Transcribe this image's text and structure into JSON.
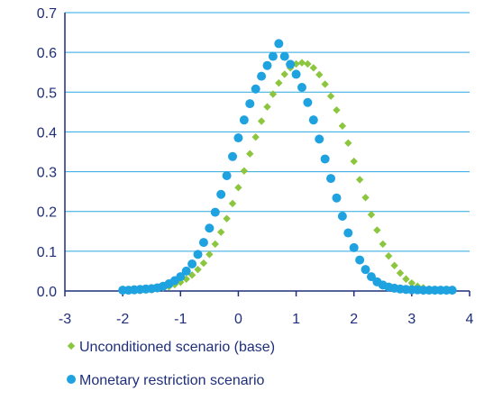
{
  "chart_data": {
    "type": "scatter",
    "title": "",
    "xlabel": "",
    "ylabel": "",
    "xlim": [
      -3,
      4
    ],
    "ylim": [
      0,
      0.7
    ],
    "x_ticks": [
      "-3",
      "-2",
      "-1",
      "0",
      "1",
      "2",
      "3",
      "4"
    ],
    "y_ticks": [
      "0.0",
      "0.1",
      "0.2",
      "0.3",
      "0.4",
      "0.5",
      "0.6",
      "0.7"
    ],
    "grid": {
      "horizontal": true,
      "vertical": false
    },
    "legend_position": "bottom-left",
    "series": [
      {
        "name": "Unconditioned scenario (base)",
        "marker": "diamond",
        "color": "#8cc63f",
        "points": [
          [
            -2.0,
            0.0
          ],
          [
            -1.9,
            0.0
          ],
          [
            -1.8,
            0.001
          ],
          [
            -1.7,
            0.001
          ],
          [
            -1.6,
            0.002
          ],
          [
            -1.5,
            0.003
          ],
          [
            -1.4,
            0.005
          ],
          [
            -1.3,
            0.008
          ],
          [
            -1.2,
            0.011
          ],
          [
            -1.1,
            0.016
          ],
          [
            -1.0,
            0.022
          ],
          [
            -0.9,
            0.03
          ],
          [
            -0.8,
            0.04
          ],
          [
            -0.7,
            0.054
          ],
          [
            -0.6,
            0.07
          ],
          [
            -0.5,
            0.092
          ],
          [
            -0.4,
            0.118
          ],
          [
            -0.3,
            0.148
          ],
          [
            -0.2,
            0.182
          ],
          [
            -0.1,
            0.22
          ],
          [
            0.0,
            0.26
          ],
          [
            0.1,
            0.302
          ],
          [
            0.2,
            0.345
          ],
          [
            0.3,
            0.387
          ],
          [
            0.4,
            0.427
          ],
          [
            0.5,
            0.463
          ],
          [
            0.6,
            0.495
          ],
          [
            0.7,
            0.523
          ],
          [
            0.8,
            0.545
          ],
          [
            0.9,
            0.561
          ],
          [
            1.0,
            0.571
          ],
          [
            1.1,
            0.574
          ],
          [
            1.2,
            0.571
          ],
          [
            1.3,
            0.561
          ],
          [
            1.4,
            0.544
          ],
          [
            1.5,
            0.52
          ],
          [
            1.6,
            0.49
          ],
          [
            1.7,
            0.455
          ],
          [
            1.8,
            0.415
          ],
          [
            1.9,
            0.372
          ],
          [
            2.0,
            0.326
          ],
          [
            2.1,
            0.28
          ],
          [
            2.2,
            0.235
          ],
          [
            2.3,
            0.192
          ],
          [
            2.4,
            0.153
          ],
          [
            2.5,
            0.118
          ],
          [
            2.6,
            0.088
          ],
          [
            2.7,
            0.064
          ],
          [
            2.8,
            0.045
          ],
          [
            2.9,
            0.03
          ],
          [
            3.0,
            0.02
          ],
          [
            3.1,
            0.012
          ],
          [
            3.2,
            0.008
          ],
          [
            3.3,
            0.005
          ],
          [
            3.4,
            0.003
          ],
          [
            3.5,
            0.002
          ],
          [
            3.6,
            0.001
          ],
          [
            3.7,
            0.001
          ]
        ]
      },
      {
        "name": "Monetary restriction scenario",
        "marker": "circle",
        "color": "#1fa2e0",
        "points": [
          [
            -2.0,
            0.002
          ],
          [
            -1.9,
            0.002
          ],
          [
            -1.8,
            0.003
          ],
          [
            -1.7,
            0.004
          ],
          [
            -1.6,
            0.005
          ],
          [
            -1.5,
            0.006
          ],
          [
            -1.4,
            0.008
          ],
          [
            -1.3,
            0.012
          ],
          [
            -1.2,
            0.018
          ],
          [
            -1.1,
            0.026
          ],
          [
            -1.0,
            0.036
          ],
          [
            -0.9,
            0.05
          ],
          [
            -0.8,
            0.068
          ],
          [
            -0.7,
            0.092
          ],
          [
            -0.6,
            0.122
          ],
          [
            -0.5,
            0.158
          ],
          [
            -0.4,
            0.198
          ],
          [
            -0.3,
            0.243
          ],
          [
            -0.2,
            0.29
          ],
          [
            -0.1,
            0.338
          ],
          [
            0.0,
            0.385
          ],
          [
            0.1,
            0.43
          ],
          [
            0.2,
            0.471
          ],
          [
            0.3,
            0.508
          ],
          [
            0.4,
            0.54
          ],
          [
            0.5,
            0.567
          ],
          [
            0.6,
            0.59
          ],
          [
            0.7,
            0.622
          ],
          [
            0.8,
            0.59
          ],
          [
            0.9,
            0.57
          ],
          [
            1.0,
            0.545
          ],
          [
            1.1,
            0.512
          ],
          [
            1.2,
            0.474
          ],
          [
            1.3,
            0.43
          ],
          [
            1.4,
            0.382
          ],
          [
            1.5,
            0.332
          ],
          [
            1.6,
            0.283
          ],
          [
            1.7,
            0.234
          ],
          [
            1.8,
            0.188
          ],
          [
            1.9,
            0.146
          ],
          [
            2.0,
            0.109
          ],
          [
            2.1,
            0.078
          ],
          [
            2.2,
            0.054
          ],
          [
            2.3,
            0.036
          ],
          [
            2.4,
            0.023
          ],
          [
            2.5,
            0.015
          ],
          [
            2.6,
            0.01
          ],
          [
            2.7,
            0.007
          ],
          [
            2.8,
            0.005
          ],
          [
            2.9,
            0.004
          ],
          [
            3.0,
            0.003
          ],
          [
            3.1,
            0.003
          ],
          [
            3.2,
            0.002
          ],
          [
            3.3,
            0.002
          ],
          [
            3.4,
            0.002
          ],
          [
            3.5,
            0.002
          ],
          [
            3.6,
            0.002
          ],
          [
            3.7,
            0.002
          ]
        ]
      }
    ]
  },
  "colors": {
    "axis": "#1f2f7a",
    "grid": "#2aa8e0",
    "text": "#1f2f7a"
  }
}
